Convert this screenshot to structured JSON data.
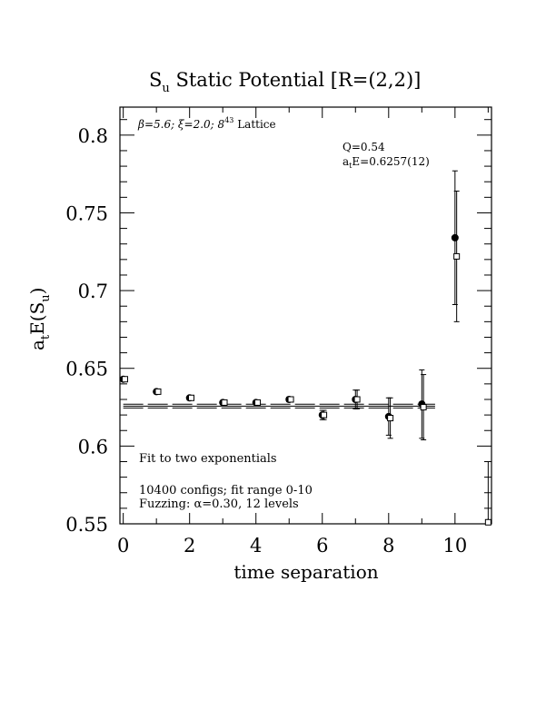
{
  "chart_data": {
    "type": "scatter",
    "title_main": "S",
    "title_sub": "u",
    "title_rest": " Static Potential [R=(2,2)]",
    "ylabel_a": "a",
    "ylabel_t": "t",
    "ylabel_E": "E(S",
    "ylabel_u": "u",
    "ylabel_close": ")",
    "xlabel": "time separation",
    "xlim": [
      -0.1,
      11.1
    ],
    "ylim": [
      0.55,
      0.818
    ],
    "xticks": [
      0,
      2,
      4,
      6,
      8,
      10
    ],
    "xtick_labels": [
      "0",
      "2",
      "4",
      "6",
      "8",
      "10"
    ],
    "yticks": [
      0.55,
      0.6,
      0.65,
      0.7,
      0.75,
      0.8
    ],
    "ytick_labels": [
      "0.55",
      "0.6",
      "0.65",
      "0.7",
      "0.75",
      "0.8"
    ],
    "annotations": {
      "params": "β=5.6; ξ=2.0; 8",
      "params_sup": "4",
      "params_sup2": "3",
      "params_end": " Lattice",
      "q": "Q=0.54",
      "fit_a": "a",
      "fit_t": "t",
      "fit_rest": "E=0.6257(12)",
      "fit_desc": "Fit to two exponentials",
      "configs": "10400 configs; fit range 0-10",
      "fuzzing": "Fuzzing: α=0.30, 12 levels"
    },
    "fit": {
      "value": 0.6257,
      "error": 0.0012,
      "x_range": [
        0,
        9.4
      ]
    },
    "series": [
      {
        "marker": "filled-circle",
        "points": [
          {
            "x": 0,
            "y": 0.643,
            "err": 0.001
          },
          {
            "x": 1,
            "y": 0.635,
            "err": 0.001
          },
          {
            "x": 2,
            "y": 0.631,
            "err": 0.001
          },
          {
            "x": 3,
            "y": 0.628,
            "err": 0.001
          },
          {
            "x": 4,
            "y": 0.628,
            "err": 0.001
          },
          {
            "x": 5,
            "y": 0.63,
            "err": 0.0015
          },
          {
            "x": 6,
            "y": 0.62,
            "err": 0.003
          },
          {
            "x": 7,
            "y": 0.63,
            "err": 0.006
          },
          {
            "x": 8,
            "y": 0.619,
            "err": 0.012
          },
          {
            "x": 9,
            "y": 0.627,
            "err": 0.022
          },
          {
            "x": 10,
            "y": 0.734,
            "err": 0.043
          }
        ]
      },
      {
        "marker": "open-square",
        "points": [
          {
            "x": 0.05,
            "y": 0.643,
            "err": 0.001
          },
          {
            "x": 1.05,
            "y": 0.635,
            "err": 0.001
          },
          {
            "x": 2.05,
            "y": 0.631,
            "err": 0.001
          },
          {
            "x": 3.05,
            "y": 0.628,
            "err": 0.001
          },
          {
            "x": 4.05,
            "y": 0.628,
            "err": 0.001
          },
          {
            "x": 5.05,
            "y": 0.63,
            "err": 0.0015
          },
          {
            "x": 6.05,
            "y": 0.62,
            "err": 0.003
          },
          {
            "x": 7.05,
            "y": 0.63,
            "err": 0.006
          },
          {
            "x": 8.05,
            "y": 0.618,
            "err": 0.013
          },
          {
            "x": 9.05,
            "y": 0.625,
            "err": 0.021
          },
          {
            "x": 10.05,
            "y": 0.722,
            "err": 0.042
          },
          {
            "x": 11.0,
            "y": 0.551,
            "err": 0.039
          }
        ]
      }
    ]
  }
}
